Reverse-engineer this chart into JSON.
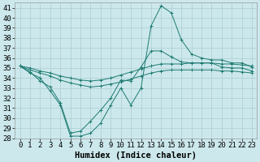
{
  "xlabel": "Humidex (Indice chaleur)",
  "xlim": [
    -0.5,
    23.5
  ],
  "ylim": [
    28,
    41.5
  ],
  "yticks": [
    28,
    29,
    30,
    31,
    32,
    33,
    34,
    35,
    36,
    37,
    38,
    39,
    40,
    41
  ],
  "xticks": [
    0,
    1,
    2,
    3,
    4,
    5,
    6,
    7,
    8,
    9,
    10,
    11,
    12,
    13,
    14,
    15,
    16,
    17,
    18,
    19,
    20,
    21,
    22,
    23
  ],
  "bg_color": "#cce8ec",
  "line_color": "#1e7b72",
  "grid_color": "#aacdd2",
  "line1_x": [
    0,
    1,
    2,
    3,
    4,
    5,
    6,
    7,
    8,
    9,
    10,
    11,
    12,
    13,
    14,
    15,
    16,
    17,
    18,
    19,
    20,
    21,
    22,
    23
  ],
  "line1_y": [
    35.2,
    34.5,
    34.0,
    32.7,
    31.3,
    28.2,
    28.2,
    28.5,
    29.5,
    31.3,
    33.0,
    31.3,
    33.0,
    39.2,
    41.2,
    40.5,
    37.8,
    36.4,
    36.0,
    35.8,
    35.8,
    35.5,
    35.5,
    35.1
  ],
  "line2_x": [
    0,
    1,
    2,
    3,
    4,
    5,
    6,
    7,
    8,
    9,
    10,
    11,
    12,
    13,
    14,
    15,
    16,
    17,
    18,
    19,
    20,
    21,
    22,
    23
  ],
  "line2_y": [
    35.2,
    34.6,
    33.7,
    33.1,
    31.5,
    28.5,
    28.7,
    29.7,
    30.8,
    32.0,
    33.8,
    33.7,
    35.1,
    36.7,
    36.7,
    36.1,
    35.6,
    35.5,
    35.5,
    35.5,
    35.1,
    35.0,
    35.0,
    34.7
  ],
  "line3_x": [
    0,
    1,
    2,
    3,
    4,
    5,
    6,
    7,
    8,
    9,
    10,
    11,
    12,
    13,
    14,
    15,
    16,
    17,
    18,
    19,
    20,
    21,
    22,
    23
  ],
  "line3_y": [
    35.2,
    35.0,
    34.7,
    34.5,
    34.2,
    34.0,
    33.8,
    33.7,
    33.8,
    34.0,
    34.3,
    34.6,
    34.9,
    35.2,
    35.4,
    35.4,
    35.4,
    35.5,
    35.5,
    35.5,
    35.4,
    35.4,
    35.3,
    35.2
  ],
  "line4_x": [
    0,
    1,
    2,
    3,
    4,
    5,
    6,
    7,
    8,
    9,
    10,
    11,
    12,
    13,
    14,
    15,
    16,
    17,
    18,
    19,
    20,
    21,
    22,
    23
  ],
  "line4_y": [
    35.2,
    34.8,
    34.5,
    34.2,
    33.8,
    33.5,
    33.3,
    33.1,
    33.2,
    33.4,
    33.6,
    33.9,
    34.2,
    34.5,
    34.7,
    34.8,
    34.8,
    34.8,
    34.8,
    34.8,
    34.7,
    34.7,
    34.6,
    34.5
  ],
  "font_family": "monospace",
  "tick_fontsize": 6.5,
  "label_fontsize": 7.5
}
